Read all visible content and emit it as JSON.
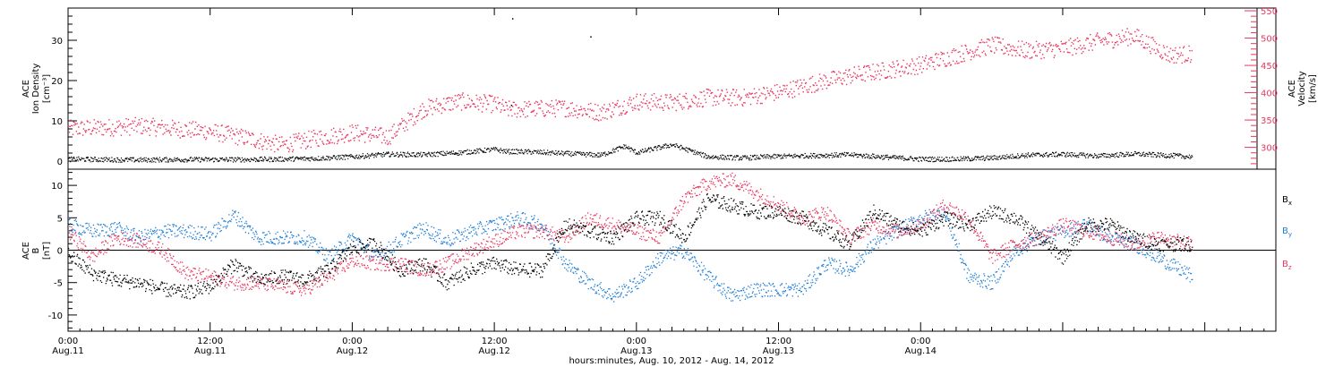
{
  "colors": {
    "black": "#000000",
    "pink": "#e8375f",
    "blue": "#1f7fd6"
  },
  "chart_data": [
    {
      "type": "scatter",
      "panel": "top",
      "ylabel_left": [
        "ACE",
        "Ion Density",
        "[cm⁻³]"
      ],
      "ylabel_right": [
        "ACE",
        "Velocity",
        "[km/s]"
      ],
      "ylim_left": [
        -2,
        38
      ],
      "yticks_left": [
        0,
        10,
        20,
        30
      ],
      "ylim_right": [
        260,
        555
      ],
      "yticks_right": [
        300,
        350,
        400,
        450,
        500,
        550
      ],
      "right_axis_color": "#e8375f",
      "series": [
        {
          "axis": "left",
          "color": "#000000",
          "x": [
            0,
            3,
            6,
            9,
            12,
            15,
            18,
            21,
            24,
            27,
            30,
            33,
            36,
            37,
            39,
            42,
            45,
            47,
            48,
            51,
            54,
            57,
            60,
            63,
            66,
            69,
            72,
            75,
            78,
            81,
            84,
            87,
            90,
            93,
            94.9
          ],
          "y": [
            0.6,
            0.5,
            0.4,
            0.5,
            0.5,
            0.5,
            0.6,
            0.8,
            1.2,
            1.8,
            1.7,
            2.2,
            3.0,
            2.5,
            2.4,
            2.0,
            1.6,
            3.8,
            2.2,
            4.2,
            1.2,
            0.9,
            1.3,
            1.5,
            1.7,
            1.1,
            0.6,
            0.6,
            0.9,
            1.6,
            1.8,
            1.4,
            1.9,
            1.5,
            1.2
          ]
        },
        {
          "axis": "right",
          "color": "#e8375f",
          "x": [
            0,
            3,
            6,
            9,
            12,
            15,
            18,
            21,
            24,
            27,
            30,
            33,
            36,
            37,
            39,
            42,
            45,
            48,
            51,
            54,
            57,
            60,
            63,
            66,
            69,
            72,
            75,
            78,
            81,
            84,
            87,
            90,
            93,
            94.9
          ],
          "y": [
            335,
            337,
            340,
            335,
            330,
            318,
            305,
            318,
            328,
            320,
            372,
            385,
            380,
            370,
            371,
            373,
            365,
            385,
            383,
            392,
            392,
            402,
            418,
            432,
            442,
            452,
            470,
            488,
            478,
            482,
            495,
            505,
            470,
            472
          ]
        }
      ],
      "spikes": [
        {
          "x": 37.5,
          "y": 35.5
        },
        {
          "x": 44.1,
          "y": 31.0
        },
        {
          "x": 37.4,
          "y": 14.0
        }
      ]
    },
    {
      "type": "scatter",
      "panel": "bottom",
      "ylabel_left": [
        "ACE",
        "B",
        "[nT]"
      ],
      "ylim": [
        -12.5,
        12.5
      ],
      "yticks": [
        -10,
        -5,
        0,
        5,
        10
      ],
      "zero_line": true,
      "legend": [
        {
          "label": "B",
          "sub": "x",
          "color": "#000000"
        },
        {
          "label": "B",
          "sub": "y",
          "color": "#1f7fd6"
        },
        {
          "label": "B",
          "sub": "z",
          "color": "#e8375f"
        }
      ],
      "series": [
        {
          "name": "Bx",
          "color": "#000000",
          "x": [
            0,
            2,
            4,
            6,
            8,
            10,
            12,
            14,
            16,
            18,
            20,
            22,
            24,
            26,
            28,
            30,
            32,
            34,
            36,
            38,
            40,
            42,
            44,
            46,
            48,
            50,
            52,
            54,
            56,
            58,
            60,
            62,
            64,
            66,
            68,
            70,
            72,
            74,
            76,
            78,
            80,
            82,
            84,
            86,
            88,
            90,
            92,
            94.9
          ],
          "y": [
            -0.5,
            -3.5,
            -4.5,
            -5,
            -6,
            -6.5,
            -5.5,
            -2,
            -4.5,
            -4,
            -4.5,
            -3,
            0.5,
            1,
            -3,
            -2,
            -5,
            -3,
            -2,
            -3,
            -3,
            4,
            3,
            2,
            5,
            5,
            2,
            8,
            7,
            6,
            6,
            5,
            3,
            1,
            6,
            4,
            3,
            5,
            4,
            6,
            5,
            2,
            -1,
            4,
            4,
            2,
            1,
            1
          ]
        },
        {
          "name": "By",
          "color": "#1f7fd6",
          "x": [
            0,
            2,
            4,
            6,
            8,
            10,
            12,
            14,
            16,
            18,
            20,
            22,
            24,
            26,
            28,
            30,
            32,
            34,
            36,
            38,
            40,
            42,
            44,
            46,
            48,
            50,
            52,
            54,
            56,
            58,
            60,
            62,
            64,
            66,
            68,
            70,
            72,
            74,
            76,
            78,
            80,
            82,
            84,
            86,
            88,
            90,
            92,
            94.9
          ],
          "y": [
            4,
            3,
            3.5,
            2,
            3,
            3,
            2.5,
            5.5,
            2,
            2,
            2,
            -1,
            2,
            -1,
            1.5,
            3.5,
            1.5,
            3,
            4,
            5,
            4,
            -2,
            -5,
            -7,
            -5,
            -1,
            0,
            -4,
            -7,
            -6,
            -6,
            -6,
            -2,
            -3,
            1,
            3,
            5,
            6,
            -4,
            -5,
            0,
            2,
            3,
            4,
            2,
            1,
            -1,
            -4
          ]
        },
        {
          "name": "Bz",
          "color": "#e8375f",
          "x": [
            0,
            2,
            4,
            6,
            8,
            10,
            12,
            14,
            16,
            18,
            20,
            22,
            24,
            26,
            28,
            30,
            32,
            34,
            36,
            38,
            40,
            42,
            44,
            46,
            48,
            50,
            52,
            54,
            56,
            58,
            60,
            62,
            64,
            66,
            68,
            70,
            72,
            74,
            76,
            78,
            80,
            82,
            84,
            86,
            88,
            90,
            92,
            94.9
          ],
          "y": [
            3,
            -1,
            2,
            1.5,
            0,
            -3.5,
            -4,
            -5,
            -5,
            -5.5,
            -6,
            -4,
            -1.5,
            -2,
            -2,
            -3,
            -2,
            0,
            1.5,
            3,
            3,
            2,
            5,
            4,
            3,
            2,
            8,
            10.5,
            11,
            9,
            7,
            5,
            6,
            2,
            4,
            3,
            4,
            7,
            5,
            -1,
            1,
            2,
            4,
            3,
            2,
            1,
            2,
            1
          ]
        }
      ]
    }
  ],
  "x_axis": {
    "range_hours": [
      0,
      102
    ],
    "ticks": [
      {
        "h": 0,
        "time": "0:00",
        "date": "Aug.11"
      },
      {
        "h": 12,
        "time": "12:00",
        "date": "Aug.11"
      },
      {
        "h": 24,
        "time": "0:00",
        "date": "Aug.12"
      },
      {
        "h": 36,
        "time": "12:00",
        "date": "Aug.12"
      },
      {
        "h": 48,
        "time": "0:00",
        "date": "Aug.13"
      },
      {
        "h": 60,
        "time": "12:00",
        "date": "Aug.13"
      },
      {
        "h": 72,
        "time": "0:00",
        "date": "Aug.14"
      }
    ],
    "label": "hours:minutes, Aug. 10, 2012 - Aug. 14, 2012"
  }
}
